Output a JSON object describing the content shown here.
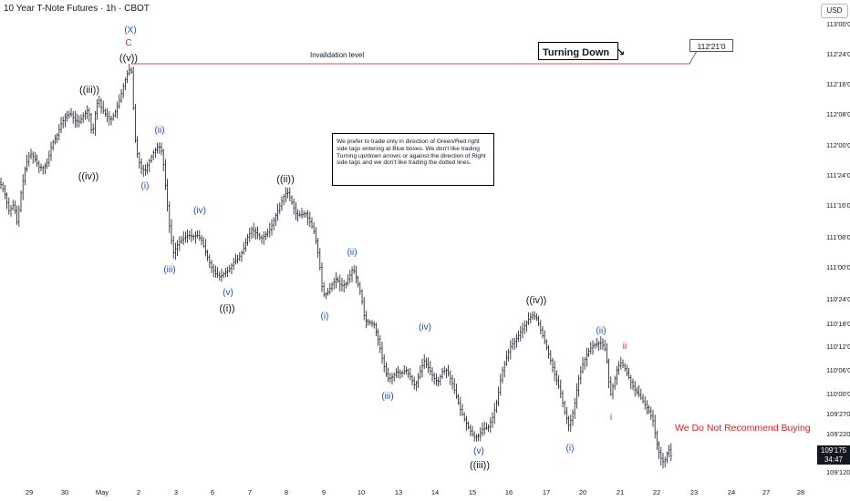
{
  "header": {
    "symbol_title": "10 Year T-Note Futures · 1h · CBOT",
    "currency": "USD"
  },
  "annotations": {
    "turning_label": "Turning Down",
    "turning_arrow": "↘",
    "invalidation_label": "Invalidation level",
    "invalidation_value": "112'21'0",
    "note": "We prefer to trade only in direction of Green/Red right side tags entering at Blue boxes. We don't like trading Turning up/down arrows or against the direction of Right side tags and we don't like trading the dotted lines.",
    "warning": "We Do Not Recommend Buying",
    "price_value": "109'175",
    "price_timer": "34:47"
  },
  "colors": {
    "bars": "#131722",
    "blue_labels": "#1f4fb4",
    "red_labels": "#e02020",
    "invalidation_line": "#e04848",
    "axis_text": "#131722"
  },
  "chart_data": {
    "type": "bar",
    "title": "10 Year T-Note Futures · 1h · CBOT",
    "x_ticks": [
      "29",
      "30",
      "May",
      "2",
      "3",
      "6",
      "7",
      "8",
      "9",
      "10",
      "13",
      "14",
      "15",
      "16",
      "17",
      "20",
      "21",
      "22",
      "23",
      "24",
      "27",
      "28"
    ],
    "y_ticks": [
      "113'00'0",
      "112'24'0",
      "112'16'0",
      "112'08'0",
      "112'00'0",
      "111'24'0",
      "111'16'0",
      "111'08'0",
      "111'00'0",
      "110'24'0",
      "110'18'0",
      "110'12'0",
      "110'06'0",
      "110'00'0",
      "109'270",
      "109'220",
      "109'120"
    ],
    "invalidation_level": "112'21'0",
    "last_price": "109'175",
    "price_path": [
      [
        0,
        200
      ],
      [
        5,
        212
      ],
      [
        10,
        232
      ],
      [
        15,
        224
      ],
      [
        19,
        246
      ],
      [
        23,
        212
      ],
      [
        28,
        182
      ],
      [
        33,
        168
      ],
      [
        38,
        174
      ],
      [
        43,
        184
      ],
      [
        48,
        184
      ],
      [
        52,
        178
      ],
      [
        57,
        158
      ],
      [
        62,
        150
      ],
      [
        67,
        136
      ],
      [
        72,
        128
      ],
      [
        77,
        124
      ],
      [
        82,
        132
      ],
      [
        87,
        134
      ],
      [
        92,
        126
      ],
      [
        97,
        120
      ],
      [
        101,
        150
      ],
      [
        105,
        120
      ],
      [
        108,
        108
      ],
      [
        111,
        118
      ],
      [
        116,
        126
      ],
      [
        121,
        132
      ],
      [
        126,
        124
      ],
      [
        131,
        110
      ],
      [
        136,
        92
      ],
      [
        141,
        76
      ],
      [
        145,
        80
      ],
      [
        147,
        144
      ],
      [
        150,
        166
      ],
      [
        154,
        184
      ],
      [
        159,
        188
      ],
      [
        164,
        176
      ],
      [
        169,
        166
      ],
      [
        174,
        160
      ],
      [
        178,
        168
      ],
      [
        182,
        210
      ],
      [
        186,
        250
      ],
      [
        190,
        278
      ],
      [
        196,
        266
      ],
      [
        201,
        262
      ],
      [
        206,
        258
      ],
      [
        211,
        260
      ],
      [
        216,
        258
      ],
      [
        221,
        264
      ],
      [
        226,
        278
      ],
      [
        231,
        292
      ],
      [
        236,
        300
      ],
      [
        241,
        304
      ],
      [
        246,
        300
      ],
      [
        251,
        296
      ],
      [
        256,
        288
      ],
      [
        261,
        284
      ],
      [
        266,
        276
      ],
      [
        271,
        262
      ],
      [
        276,
        252
      ],
      [
        281,
        256
      ],
      [
        286,
        262
      ],
      [
        291,
        258
      ],
      [
        296,
        252
      ],
      [
        301,
        240
      ],
      [
        306,
        228
      ],
      [
        311,
        216
      ],
      [
        315,
        210
      ],
      [
        320,
        222
      ],
      [
        325,
        236
      ],
      [
        330,
        236
      ],
      [
        335,
        234
      ],
      [
        340,
        244
      ],
      [
        345,
        256
      ],
      [
        350,
        286
      ],
      [
        354,
        324
      ],
      [
        359,
        322
      ],
      [
        364,
        312
      ],
      [
        369,
        306
      ],
      [
        374,
        314
      ],
      [
        379,
        312
      ],
      [
        383,
        304
      ],
      [
        387,
        294
      ],
      [
        392,
        310
      ],
      [
        396,
        324
      ],
      [
        400,
        352
      ],
      [
        405,
        354
      ],
      [
        410,
        356
      ],
      [
        415,
        374
      ],
      [
        420,
        398
      ],
      [
        425,
        416
      ],
      [
        430,
        414
      ],
      [
        435,
        408
      ],
      [
        440,
        410
      ],
      [
        445,
        406
      ],
      [
        450,
        414
      ],
      [
        455,
        424
      ],
      [
        460,
        410
      ],
      [
        465,
        396
      ],
      [
        470,
        404
      ],
      [
        475,
        414
      ],
      [
        480,
        420
      ],
      [
        485,
        408
      ],
      [
        490,
        406
      ],
      [
        495,
        418
      ],
      [
        500,
        434
      ],
      [
        505,
        450
      ],
      [
        510,
        462
      ],
      [
        515,
        472
      ],
      [
        520,
        480
      ],
      [
        525,
        478
      ],
      [
        530,
        470
      ],
      [
        535,
        470
      ],
      [
        540,
        458
      ],
      [
        545,
        440
      ],
      [
        550,
        410
      ],
      [
        555,
        394
      ],
      [
        560,
        380
      ],
      [
        565,
        374
      ],
      [
        570,
        366
      ],
      [
        575,
        358
      ],
      [
        580,
        350
      ],
      [
        584,
        346
      ],
      [
        589,
        350
      ],
      [
        594,
        366
      ],
      [
        599,
        380
      ],
      [
        604,
        396
      ],
      [
        609,
        414
      ],
      [
        614,
        428
      ],
      [
        619,
        452
      ],
      [
        624,
        468
      ],
      [
        629,
        450
      ],
      [
        634,
        418
      ],
      [
        639,
        400
      ],
      [
        644,
        388
      ],
      [
        649,
        380
      ],
      [
        654,
        378
      ],
      [
        659,
        376
      ],
      [
        663,
        382
      ],
      [
        666,
        400
      ],
      [
        669,
        436
      ],
      [
        673,
        420
      ],
      [
        677,
        404
      ],
      [
        681,
        398
      ],
      [
        686,
        406
      ],
      [
        691,
        418
      ],
      [
        696,
        428
      ],
      [
        701,
        434
      ],
      [
        706,
        442
      ],
      [
        711,
        450
      ],
      [
        716,
        462
      ],
      [
        720,
        486
      ],
      [
        724,
        502
      ],
      [
        728,
        508
      ],
      [
        732,
        496
      ],
      [
        735,
        492
      ],
      [
        738,
        524
      ]
    ],
    "wave_labels": [
      {
        "text": "(X)",
        "x": 143,
        "y": 32,
        "color": "blue"
      },
      {
        "text": "C",
        "x": 141,
        "y": 46,
        "color": "red"
      },
      {
        "text": "((v))",
        "x": 141,
        "y": 63,
        "color": "black"
      },
      {
        "text": "((iii))",
        "x": 98,
        "y": 98,
        "color": "black"
      },
      {
        "text": "((iv))",
        "x": 97,
        "y": 193,
        "color": "black"
      },
      {
        "text": "(ii)",
        "x": 175,
        "y": 142,
        "color": "blue"
      },
      {
        "text": "(i)",
        "x": 159,
        "y": 203,
        "color": "blue"
      },
      {
        "text": "(iii)",
        "x": 186,
        "y": 295,
        "color": "blue"
      },
      {
        "text": "(iv)",
        "x": 219,
        "y": 230,
        "color": "blue"
      },
      {
        "text": "(v)",
        "x": 250,
        "y": 320,
        "color": "blue"
      },
      {
        "text": "((i))",
        "x": 249,
        "y": 338,
        "color": "black"
      },
      {
        "text": "((ii))",
        "x": 313,
        "y": 196,
        "color": "black"
      },
      {
        "text": "(ii)",
        "x": 386,
        "y": 276,
        "color": "blue"
      },
      {
        "text": "(i)",
        "x": 356,
        "y": 346,
        "color": "blue"
      },
      {
        "text": "(iii)",
        "x": 425,
        "y": 434,
        "color": "blue"
      },
      {
        "text": "(iv)",
        "x": 466,
        "y": 358,
        "color": "blue"
      },
      {
        "text": "(v)",
        "x": 525,
        "y": 494,
        "color": "blue"
      },
      {
        "text": "((iii))",
        "x": 526,
        "y": 510,
        "color": "black"
      },
      {
        "text": "((iv))",
        "x": 588,
        "y": 329,
        "color": "black"
      },
      {
        "text": "(ii)",
        "x": 659,
        "y": 362,
        "color": "blue"
      },
      {
        "text": "(i)",
        "x": 625,
        "y": 491,
        "color": "blue"
      },
      {
        "text": "ii",
        "x": 685,
        "y": 379,
        "color": "red"
      },
      {
        "text": "i",
        "x": 670,
        "y": 457,
        "color": "red"
      }
    ]
  }
}
